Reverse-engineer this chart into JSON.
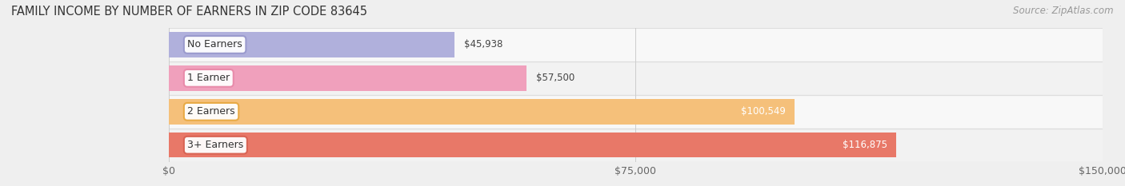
{
  "title": "FAMILY INCOME BY NUMBER OF EARNERS IN ZIP CODE 83645",
  "source": "Source: ZipAtlas.com",
  "categories": [
    "No Earners",
    "1 Earner",
    "2 Earners",
    "3+ Earners"
  ],
  "values": [
    45938,
    57500,
    100549,
    116875
  ],
  "value_labels": [
    "$45,938",
    "$57,500",
    "$100,549",
    "$116,875"
  ],
  "bar_colors": [
    "#b0b0dc",
    "#f0a0bc",
    "#f5c07a",
    "#e87868"
  ],
  "label_circle_colors": [
    "#9898cc",
    "#e888a8",
    "#e8a840",
    "#d86050"
  ],
  "label_border_colors": [
    "#9898cc",
    "#e888a8",
    "#e8a840",
    "#d86050"
  ],
  "xlim": [
    0,
    150000
  ],
  "xtick_values": [
    0,
    75000,
    150000
  ],
  "xtick_labels": [
    "$0",
    "$75,000",
    "$150,000"
  ],
  "background_color": "#efefef",
  "row_bg_colors": [
    "#f5f5f5",
    "#f0f0f0"
  ],
  "separator_color": "#dddddd",
  "title_fontsize": 10.5,
  "source_fontsize": 8.5,
  "tick_fontsize": 9,
  "label_fontsize": 9,
  "value_label_fontsize": 8.5,
  "figsize": [
    14.06,
    2.33
  ],
  "dpi": 100
}
